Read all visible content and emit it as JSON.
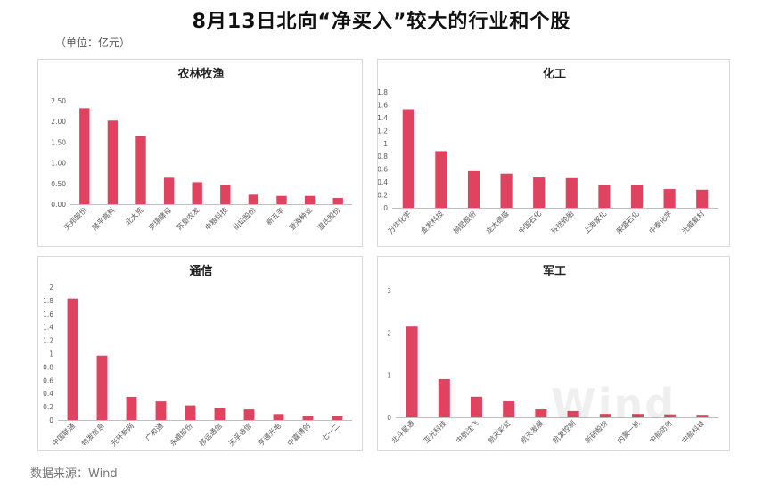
{
  "page": {
    "title": "8月13日北向“净买入”较大的行业和个股",
    "unit": "（单位：亿元）",
    "source": "数据来源：Wind",
    "watermark": "Wind"
  },
  "colors": {
    "bar": "#e0435f",
    "axis": "#bfbfbf",
    "text": "#595959"
  },
  "chart_data": [
    {
      "type": "bar",
      "title": "农林牧渔",
      "categories": [
        "天邦股份",
        "隆平高科",
        "北大荒",
        "安琪酵母",
        "苏垦农发",
        "中粮科技",
        "仙坛股份",
        "新五丰",
        "登海种业",
        "温氏股份"
      ],
      "values": [
        2.32,
        2.02,
        1.65,
        0.64,
        0.53,
        0.46,
        0.23,
        0.2,
        0.2,
        0.15
      ],
      "ylim": [
        0,
        2.5
      ],
      "yticks": [
        "0.00",
        "0.50",
        "1.00",
        "1.50",
        "2.00",
        "2.50"
      ],
      "ytick_values": [
        0,
        0.5,
        1.0,
        1.5,
        2.0,
        2.5
      ],
      "grid": false
    },
    {
      "type": "bar",
      "title": "化工",
      "categories": [
        "万华化学",
        "金发科技",
        "桐昆股份",
        "龙大德盛",
        "中国石化",
        "玲珑轮胎",
        "上海家化",
        "荣盛石化",
        "中泰化学",
        "光威复材"
      ],
      "values": [
        1.53,
        0.88,
        0.57,
        0.53,
        0.47,
        0.46,
        0.35,
        0.35,
        0.29,
        0.28
      ],
      "ylim": [
        0,
        1.8
      ],
      "yticks": [
        "0",
        "0.2",
        "0.4",
        "0.6",
        "0.8",
        "1",
        "1.2",
        "1.4",
        "1.6",
        "1.8"
      ],
      "ytick_values": [
        0,
        0.2,
        0.4,
        0.6,
        0.8,
        1.0,
        1.2,
        1.4,
        1.6,
        1.8
      ],
      "grid": false
    },
    {
      "type": "bar",
      "title": "通信",
      "categories": [
        "中国联通",
        "特发信息",
        "光环新网",
        "广和通",
        "永鼎股份",
        "移远通信",
        "天孚通信",
        "亨通光电",
        "中嘉博创",
        "七一二"
      ],
      "values": [
        1.83,
        0.97,
        0.35,
        0.28,
        0.22,
        0.18,
        0.16,
        0.09,
        0.06,
        0.06
      ],
      "ylim": [
        0,
        2
      ],
      "yticks": [
        "0",
        "0.2",
        "0.4",
        "0.6",
        "0.8",
        "1",
        "1.2",
        "1.4",
        "1.6",
        "1.8",
        "2"
      ],
      "ytick_values": [
        0,
        0.2,
        0.4,
        0.6,
        0.8,
        1.0,
        1.2,
        1.4,
        1.6,
        1.8,
        2.0
      ],
      "grid": false
    },
    {
      "type": "bar",
      "title": "军工",
      "categories": [
        "北斗星通",
        "亚光科技",
        "中航沈飞",
        "航天彩虹",
        "航天发展",
        "航发控制",
        "新研股份",
        "内蒙一机",
        "中船防务",
        "中船科技"
      ],
      "values": [
        2.15,
        0.91,
        0.49,
        0.38,
        0.19,
        0.15,
        0.08,
        0.08,
        0.07,
        0.06
      ],
      "ylim": [
        0,
        3
      ],
      "yticks": [
        "0",
        "1",
        "2",
        "3"
      ],
      "ytick_values": [
        0,
        1,
        2,
        3
      ],
      "grid": false
    }
  ]
}
